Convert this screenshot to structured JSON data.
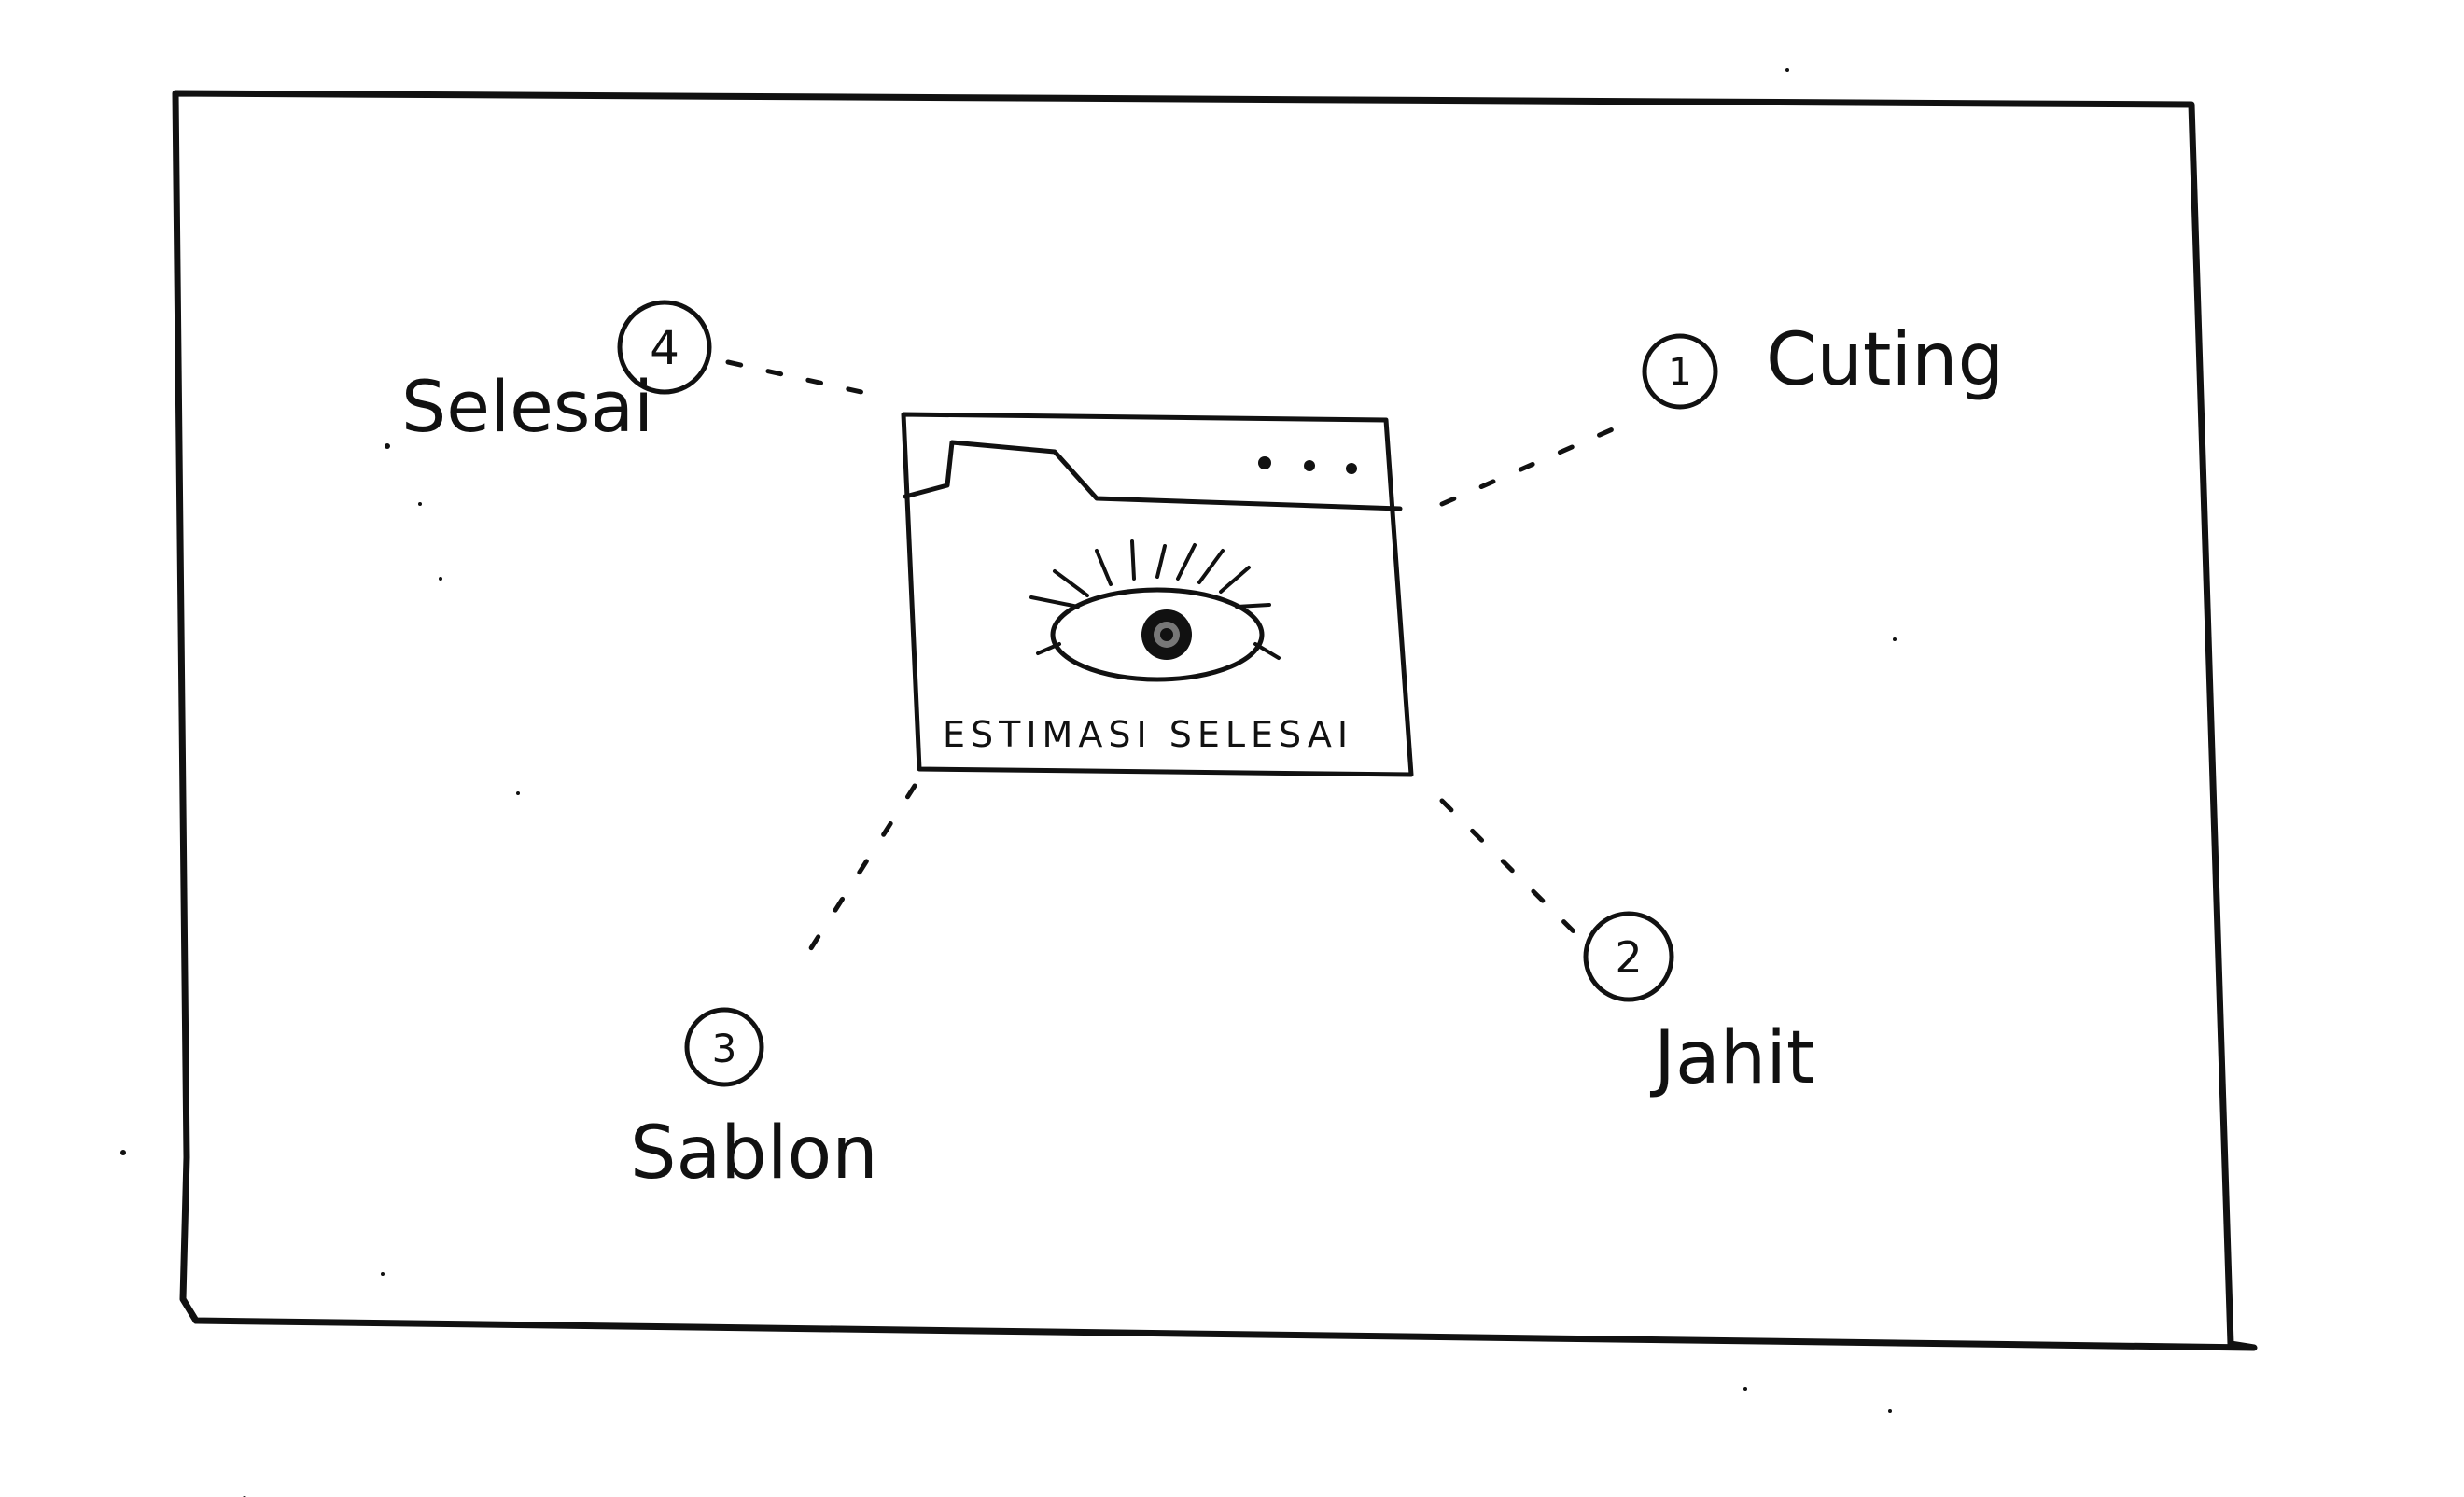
{
  "center_card": {
    "caption": "ESTIMASI SELESAI",
    "menu_dots": "...",
    "icon": "eye-icon"
  },
  "steps": [
    {
      "number": "1",
      "label": "Cuting"
    },
    {
      "number": "2",
      "label": "Jahit"
    },
    {
      "number": "3",
      "label": "Sablon"
    },
    {
      "number": "4",
      "label": "Selesai"
    }
  ],
  "colors": {
    "ink": "#111111",
    "paper": "#ffffff"
  }
}
